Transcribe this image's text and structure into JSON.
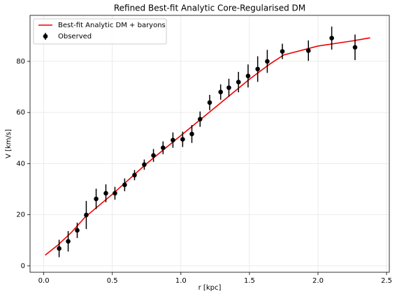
{
  "chart_data": {
    "type": "line",
    "title": "Refined Best-fit Analytic Core-Regularised DM",
    "x_label": "r [kpc]",
    "y_label": "V [km/s]",
    "xlim": [
      -0.1,
      2.52
    ],
    "ylim": [
      -2.5,
      98
    ],
    "xticks": [
      {
        "value": 0,
        "label": "0.0"
      },
      0.5,
      {
        "value": 1,
        "label": "1.0"
      },
      1.5,
      {
        "value": 2,
        "label": "2.0"
      },
      2.5
    ],
    "yticks": [
      0,
      20,
      40,
      60,
      80
    ],
    "grid": true,
    "legend": "upper left",
    "series": [
      {
        "name": "Best-fit Analytic DM + baryons",
        "type": "line",
        "color": "#ee0000",
        "x": [
          0.01,
          0.1,
          0.2,
          0.3,
          0.5,
          0.75,
          1.0,
          1.25,
          1.5,
          1.65,
          1.75,
          2.0,
          2.25,
          2.38
        ],
        "values": [
          4.2,
          8,
          13,
          19,
          28,
          40,
          51,
          62,
          73,
          79,
          82.5,
          86,
          88,
          89.2
        ]
      },
      {
        "name": "Observed",
        "type": "errorbar",
        "color": "#000000",
        "x": [
          0.112,
          0.178,
          0.244,
          0.31,
          0.382,
          0.453,
          0.519,
          0.59,
          0.662,
          0.733,
          0.8,
          0.87,
          0.942,
          1.013,
          1.08,
          1.14,
          1.21,
          1.29,
          1.35,
          1.42,
          1.49,
          1.56,
          1.63,
          1.74,
          1.93,
          2.1,
          2.27
        ],
        "values": [
          6.8,
          9.6,
          13.9,
          19.9,
          26.2,
          28.4,
          28.4,
          31.7,
          35.5,
          39.6,
          43.2,
          46.2,
          49.2,
          49.5,
          51.6,
          57.4,
          63.9,
          68,
          69.7,
          71.9,
          74.3,
          77,
          80,
          83.9,
          84.2,
          89.1,
          85.5
        ],
        "errors": [
          3.4,
          4,
          3,
          5.5,
          4,
          3.5,
          2.5,
          2.5,
          2,
          2,
          2.5,
          2.5,
          3,
          3,
          3.5,
          3,
          3,
          3,
          3.5,
          4,
          4.5,
          5,
          4.5,
          3,
          4,
          4.5,
          5
        ]
      }
    ]
  }
}
